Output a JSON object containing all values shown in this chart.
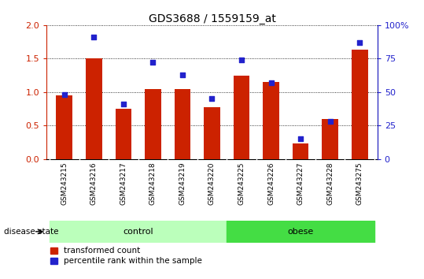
{
  "title": "GDS3688 / 1559159_at",
  "samples": [
    "GSM243215",
    "GSM243216",
    "GSM243217",
    "GSM243218",
    "GSM243219",
    "GSM243220",
    "GSM243225",
    "GSM243226",
    "GSM243227",
    "GSM243228",
    "GSM243275"
  ],
  "red_values": [
    0.95,
    1.5,
    0.75,
    1.05,
    1.05,
    0.78,
    1.25,
    1.15,
    0.23,
    0.6,
    1.63
  ],
  "blue_values_pct": [
    48,
    91,
    41,
    72,
    63,
    45,
    74,
    57,
    15,
    28,
    87
  ],
  "n_control": 6,
  "n_obese": 5,
  "control_label": "control",
  "obese_label": "obese",
  "disease_state_label": "disease state",
  "ylim_left": [
    0,
    2
  ],
  "ylim_right": [
    0,
    100
  ],
  "yticks_left": [
    0,
    0.5,
    1.0,
    1.5,
    2.0
  ],
  "yticks_right": [
    0,
    25,
    50,
    75,
    100
  ],
  "bar_color": "#cc2200",
  "marker_color": "#2222cc",
  "control_bg": "#bbffbb",
  "obese_bg": "#44dd44",
  "tick_label_bg": "#cccccc",
  "legend_red_label": "transformed count",
  "legend_blue_label": "percentile rank within the sample",
  "bar_width": 0.55
}
